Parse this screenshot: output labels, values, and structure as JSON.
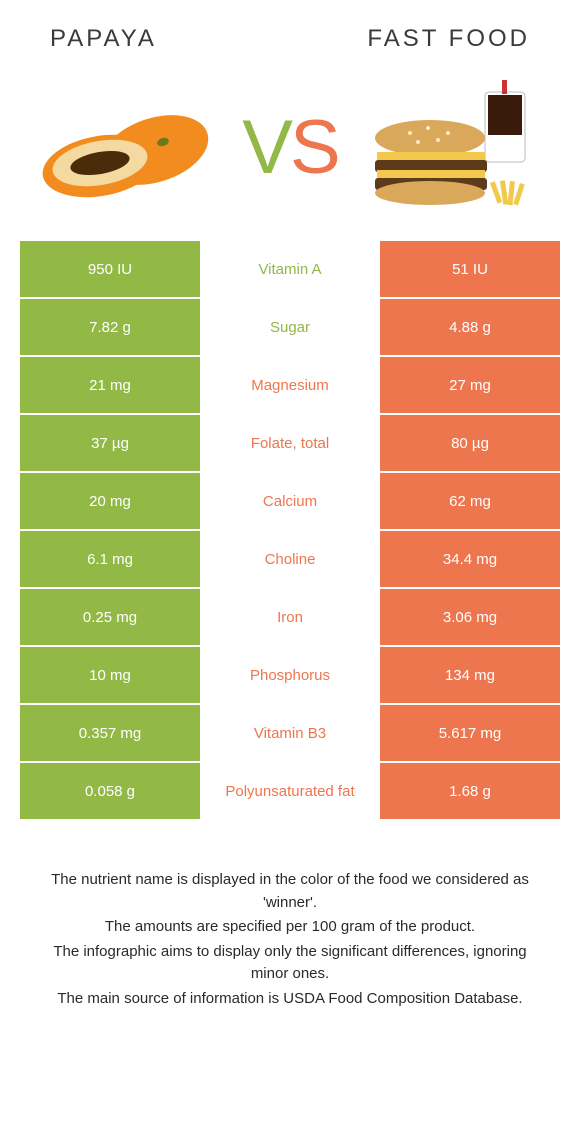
{
  "left_title": "Papaya",
  "right_title": "Fast food",
  "vs_v": "V",
  "vs_s": "S",
  "colors": {
    "left_bg": "#92b846",
    "right_bg": "#ed764f",
    "left_label": "#92b846",
    "right_label": "#ed764f"
  },
  "rows": [
    {
      "left": "950 IU",
      "label": "Vitamin A",
      "right": "51 IU",
      "winner": "left"
    },
    {
      "left": "7.82 g",
      "label": "Sugar",
      "right": "4.88 g",
      "winner": "left"
    },
    {
      "left": "21 mg",
      "label": "Magnesium",
      "right": "27 mg",
      "winner": "right"
    },
    {
      "left": "37 µg",
      "label": "Folate, total",
      "right": "80 µg",
      "winner": "right"
    },
    {
      "left": "20 mg",
      "label": "Calcium",
      "right": "62 mg",
      "winner": "right"
    },
    {
      "left": "6.1 mg",
      "label": "Choline",
      "right": "34.4 mg",
      "winner": "right"
    },
    {
      "left": "0.25 mg",
      "label": "Iron",
      "right": "3.06 mg",
      "winner": "right"
    },
    {
      "left": "10 mg",
      "label": "Phosphorus",
      "right": "134 mg",
      "winner": "right"
    },
    {
      "left": "0.357 mg",
      "label": "Vitamin B3",
      "right": "5.617 mg",
      "winner": "right"
    },
    {
      "left": "0.058 g",
      "label": "Polyunsaturated fat",
      "right": "1.68 g",
      "winner": "right"
    }
  ],
  "notes": [
    "The nutrient name is displayed in the color of the food we considered as 'winner'.",
    "The amounts are specified per 100 gram of the product.",
    "The infographic aims to display only the significant differences, ignoring minor ones.",
    "The main source of information is USDA Food Composition Database."
  ]
}
